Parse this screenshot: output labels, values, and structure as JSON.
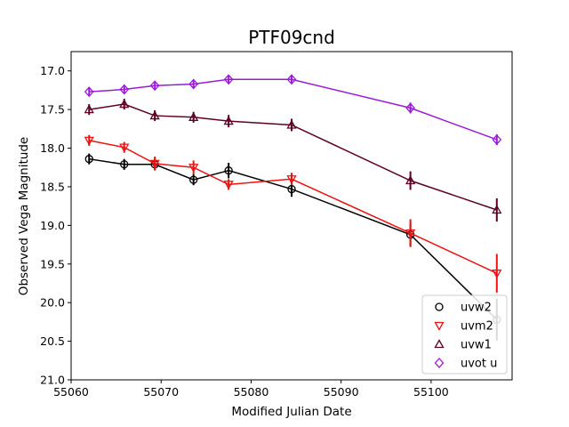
{
  "chart_data": {
    "type": "line",
    "title": "PTF09cnd",
    "xlabel": "Modified Julian Date",
    "ylabel": "Observed Vega Magnitude",
    "xlim": [
      55060,
      55109
    ],
    "ylim": [
      21.0,
      16.75
    ],
    "y_inverted": true,
    "xticks": [
      55060,
      55070,
      55080,
      55090,
      55100
    ],
    "yticks": [
      17.0,
      17.5,
      18.0,
      18.5,
      19.0,
      19.5,
      20.0,
      20.5,
      21.0
    ],
    "xtick_labels": [
      "55060",
      "55070",
      "55080",
      "55090",
      "55100"
    ],
    "ytick_labels": [
      "17.0",
      "17.5",
      "18.0",
      "18.5",
      "19.0",
      "19.5",
      "20.0",
      "20.5",
      "21.0"
    ],
    "grid": false,
    "legend_position": "lower-right",
    "series": [
      {
        "name": "uvw2",
        "color": "#000000",
        "marker": "circle",
        "x": [
          55062.0,
          55065.9,
          55069.3,
          55073.6,
          55077.5,
          55084.5,
          55097.7,
          55107.3
        ],
        "y": [
          18.14,
          18.21,
          18.21,
          18.41,
          18.29,
          18.53,
          19.12,
          20.22
        ],
        "err": [
          0.07,
          0.07,
          0.07,
          0.07,
          0.1,
          0.1,
          0.15,
          0.27
        ]
      },
      {
        "name": "uvm2",
        "color": "#ee1111",
        "marker": "triangle-down",
        "x": [
          55062.0,
          55065.9,
          55069.3,
          55073.6,
          55077.5,
          55084.5,
          55097.7,
          55107.3
        ],
        "y": [
          17.9,
          17.99,
          18.2,
          18.25,
          18.47,
          18.4,
          19.1,
          19.62
        ],
        "err": [
          0.07,
          0.07,
          0.09,
          0.09,
          0.07,
          0.08,
          0.18,
          0.25
        ]
      },
      {
        "name": "uvw1",
        "color": "#5e0025",
        "marker": "triangle-up",
        "x": [
          55062.0,
          55065.9,
          55069.3,
          55073.6,
          55077.5,
          55084.5,
          55097.7,
          55107.3
        ],
        "y": [
          17.5,
          17.43,
          17.58,
          17.6,
          17.65,
          17.7,
          18.42,
          18.8
        ],
        "err": [
          0.07,
          0.07,
          0.07,
          0.07,
          0.08,
          0.08,
          0.12,
          0.15
        ]
      },
      {
        "name": "uvot u",
        "color": "#9a1ad8",
        "marker": "diamond",
        "x": [
          55062.0,
          55065.9,
          55069.3,
          55073.6,
          55077.5,
          55084.5,
          55097.7,
          55107.3
        ],
        "y": [
          17.27,
          17.24,
          17.19,
          17.17,
          17.11,
          17.11,
          17.48,
          17.89
        ],
        "err": [
          0.05,
          0.05,
          0.05,
          0.05,
          0.05,
          0.05,
          0.07,
          0.07
        ]
      }
    ]
  }
}
